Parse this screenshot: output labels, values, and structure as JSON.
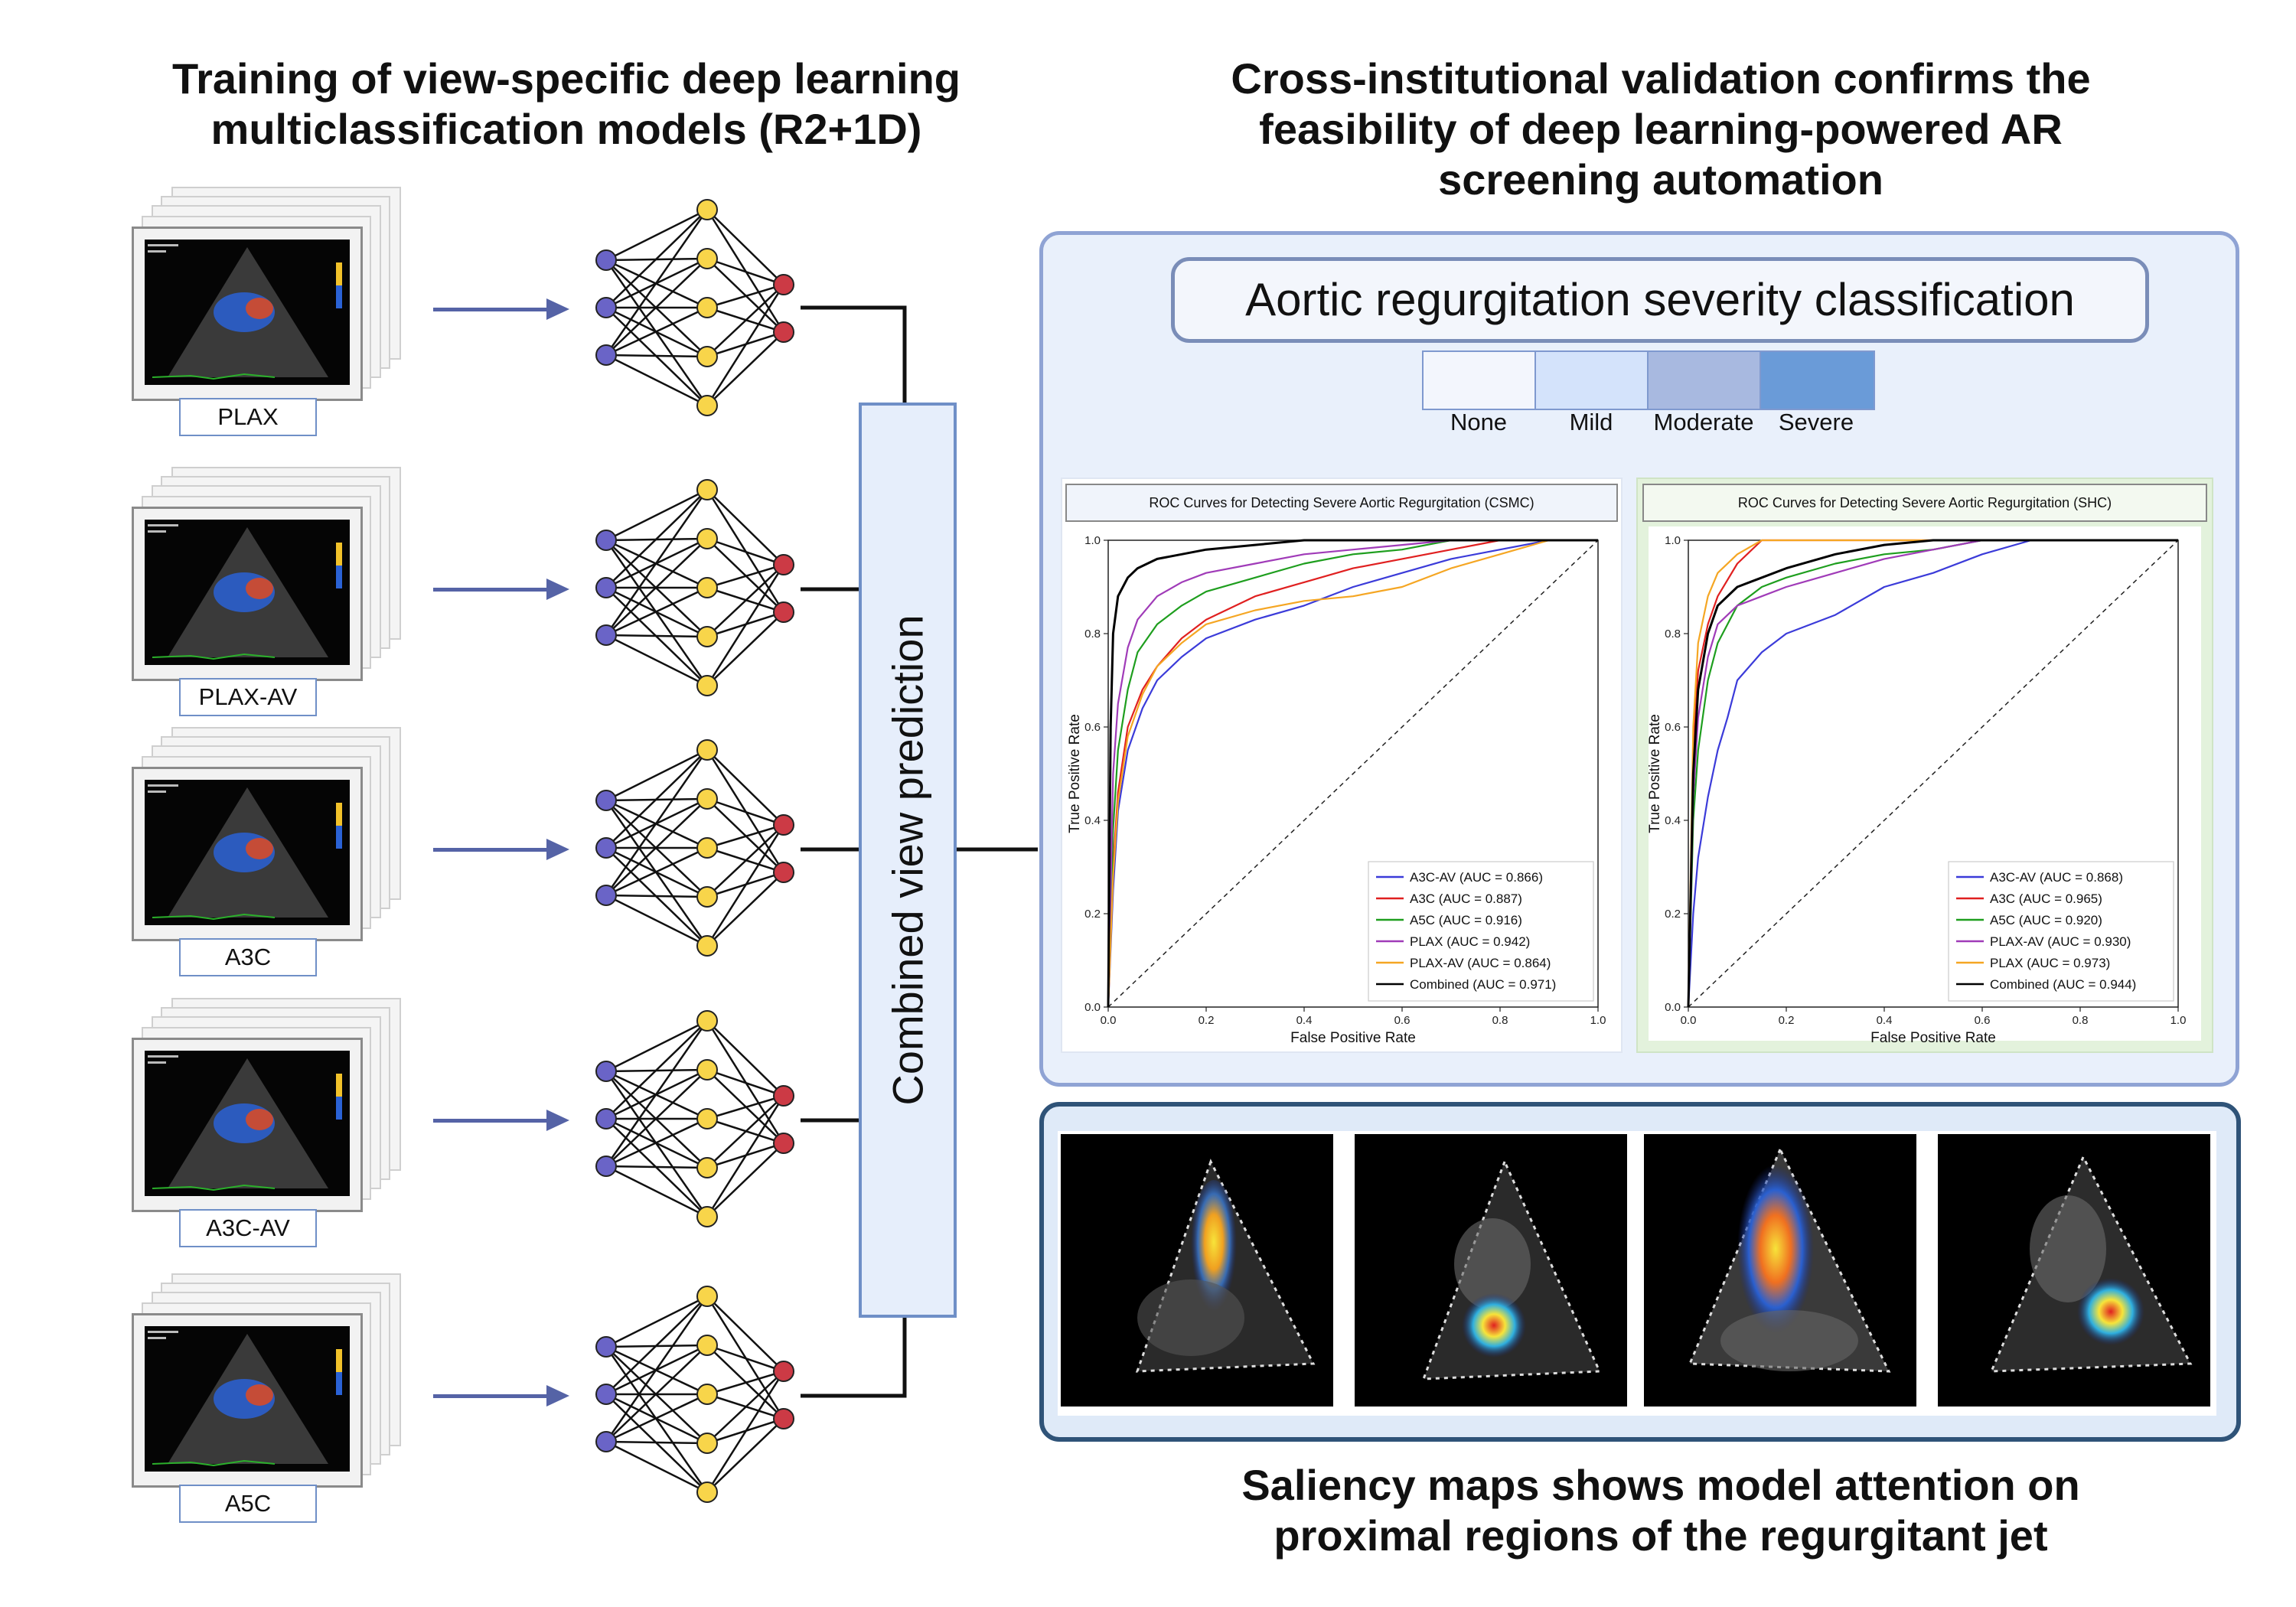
{
  "left_title_line1": "Training of view-specific deep learning",
  "left_title_line2": "multiclassification models (R2+1D)",
  "right_title_line1": "Cross-institutional validation confirms the",
  "right_title_line2": "feasibility of deep learning-powered AR",
  "right_title_line3": "screening automation",
  "bottom_title_line1": "Saliency maps shows model attention on",
  "bottom_title_line2": "proximal regions of the regurgitant jet",
  "views": [
    {
      "label": "PLAX"
    },
    {
      "label": "PLAX-AV"
    },
    {
      "label": "A3C"
    },
    {
      "label": "A3C-AV"
    },
    {
      "label": "A5C"
    }
  ],
  "combined_label": "Combined view  prediction",
  "severity_title": "Aortic regurgitation severity classification",
  "severity_legend": [
    {
      "label": "None",
      "color": "#f3f6fd"
    },
    {
      "label": "Mild",
      "color": "#d4e3fb"
    },
    {
      "label": "Moderate",
      "color": "#a8b9e0"
    },
    {
      "label": "Severe",
      "color": "#6a9bd8"
    }
  ],
  "colors": {
    "input_node": "#6a64c7",
    "hidden_node": "#f8d54a",
    "output_node": "#cc3a45",
    "arrow": "#5563a6",
    "panel_top_bg": "#e9f0fb",
    "panel_top_border": "#8fa3d4",
    "panel_bottom_bg": "#dfeaf8",
    "panel_bottom_border": "#2f5378"
  },
  "chart_data": [
    {
      "type": "line",
      "title": "ROC Curves for Detecting Severe Aortic Regurgitation (CSMC)",
      "xlabel": "False Positive Rate",
      "ylabel": "True Positive Rate",
      "xlim": [
        0,
        1
      ],
      "ylim": [
        0,
        1
      ],
      "ticks": [
        "0.0",
        "0.2",
        "0.4",
        "0.6",
        "0.8",
        "1.0"
      ],
      "legend_position": "bottom-right",
      "series": [
        {
          "name": "A3C-AV (AUC = 0.866)",
          "color": "#3b3bd9",
          "points": [
            [
              0,
              0
            ],
            [
              0.01,
              0.25
            ],
            [
              0.02,
              0.42
            ],
            [
              0.04,
              0.55
            ],
            [
              0.07,
              0.64
            ],
            [
              0.1,
              0.7
            ],
            [
              0.15,
              0.75
            ],
            [
              0.2,
              0.79
            ],
            [
              0.3,
              0.83
            ],
            [
              0.4,
              0.86
            ],
            [
              0.5,
              0.9
            ],
            [
              0.6,
              0.93
            ],
            [
              0.7,
              0.96
            ],
            [
              0.8,
              0.98
            ],
            [
              0.9,
              1
            ],
            [
              1,
              1
            ]
          ]
        },
        {
          "name": "A3C (AUC = 0.887)",
          "color": "#e02020",
          "points": [
            [
              0,
              0
            ],
            [
              0.01,
              0.3
            ],
            [
              0.02,
              0.46
            ],
            [
              0.04,
              0.6
            ],
            [
              0.07,
              0.68
            ],
            [
              0.1,
              0.73
            ],
            [
              0.15,
              0.79
            ],
            [
              0.2,
              0.83
            ],
            [
              0.3,
              0.88
            ],
            [
              0.4,
              0.91
            ],
            [
              0.5,
              0.94
            ],
            [
              0.6,
              0.96
            ],
            [
              0.7,
              0.98
            ],
            [
              0.8,
              1
            ],
            [
              1,
              1
            ]
          ]
        },
        {
          "name": "A5C (AUC = 0.916)",
          "color": "#1e9e1e",
          "points": [
            [
              0,
              0
            ],
            [
              0.01,
              0.38
            ],
            [
              0.02,
              0.55
            ],
            [
              0.04,
              0.68
            ],
            [
              0.06,
              0.76
            ],
            [
              0.1,
              0.82
            ],
            [
              0.15,
              0.86
            ],
            [
              0.2,
              0.89
            ],
            [
              0.3,
              0.92
            ],
            [
              0.4,
              0.95
            ],
            [
              0.5,
              0.97
            ],
            [
              0.6,
              0.98
            ],
            [
              0.7,
              1
            ],
            [
              1,
              1
            ]
          ]
        },
        {
          "name": "PLAX (AUC = 0.942)",
          "color": "#a03bb8",
          "points": [
            [
              0,
              0
            ],
            [
              0.01,
              0.5
            ],
            [
              0.02,
              0.65
            ],
            [
              0.04,
              0.77
            ],
            [
              0.06,
              0.83
            ],
            [
              0.1,
              0.88
            ],
            [
              0.15,
              0.91
            ],
            [
              0.2,
              0.93
            ],
            [
              0.3,
              0.95
            ],
            [
              0.4,
              0.97
            ],
            [
              0.5,
              0.98
            ],
            [
              0.6,
              0.99
            ],
            [
              0.7,
              1
            ],
            [
              1,
              1
            ]
          ]
        },
        {
          "name": "PLAX-AV (AUC = 0.864)",
          "color": "#f5a623",
          "points": [
            [
              0,
              0
            ],
            [
              0.01,
              0.28
            ],
            [
              0.02,
              0.44
            ],
            [
              0.04,
              0.58
            ],
            [
              0.07,
              0.67
            ],
            [
              0.1,
              0.73
            ],
            [
              0.15,
              0.78
            ],
            [
              0.2,
              0.82
            ],
            [
              0.3,
              0.85
            ],
            [
              0.4,
              0.87
            ],
            [
              0.5,
              0.88
            ],
            [
              0.6,
              0.9
            ],
            [
              0.7,
              0.94
            ],
            [
              0.8,
              0.97
            ],
            [
              0.9,
              1
            ],
            [
              1,
              1
            ]
          ]
        },
        {
          "name": "Combined (AUC = 0.971)",
          "color": "#000000",
          "points": [
            [
              0,
              0
            ],
            [
              0.005,
              0.6
            ],
            [
              0.01,
              0.8
            ],
            [
              0.02,
              0.88
            ],
            [
              0.04,
              0.92
            ],
            [
              0.06,
              0.94
            ],
            [
              0.1,
              0.96
            ],
            [
              0.15,
              0.97
            ],
            [
              0.2,
              0.98
            ],
            [
              0.3,
              0.99
            ],
            [
              0.4,
              1
            ],
            [
              1,
              1
            ]
          ]
        }
      ]
    },
    {
      "type": "line",
      "title": "ROC Curves for Detecting Severe Aortic Regurgitation (SHC)",
      "xlabel": "False Positive Rate",
      "ylabel": "True Positive Rate",
      "xlim": [
        0,
        1
      ],
      "ylim": [
        0,
        1
      ],
      "ticks": [
        "0.0",
        "0.2",
        "0.4",
        "0.6",
        "0.8",
        "1.0"
      ],
      "legend_position": "bottom-right",
      "series": [
        {
          "name": "A3C-AV (AUC = 0.868)",
          "color": "#3b3bd9",
          "points": [
            [
              0,
              0
            ],
            [
              0.01,
              0.2
            ],
            [
              0.02,
              0.32
            ],
            [
              0.04,
              0.45
            ],
            [
              0.06,
              0.55
            ],
            [
              0.08,
              0.62
            ],
            [
              0.1,
              0.7
            ],
            [
              0.15,
              0.76
            ],
            [
              0.2,
              0.8
            ],
            [
              0.3,
              0.84
            ],
            [
              0.4,
              0.9
            ],
            [
              0.5,
              0.93
            ],
            [
              0.6,
              0.97
            ],
            [
              0.7,
              1
            ],
            [
              1,
              1
            ]
          ]
        },
        {
          "name": "A3C (AUC = 0.965)",
          "color": "#e02020",
          "points": [
            [
              0,
              0
            ],
            [
              0.01,
              0.55
            ],
            [
              0.02,
              0.72
            ],
            [
              0.04,
              0.82
            ],
            [
              0.06,
              0.88
            ],
            [
              0.1,
              0.95
            ],
            [
              0.15,
              1
            ],
            [
              1,
              1
            ]
          ]
        },
        {
          "name": "A5C (AUC = 0.920)",
          "color": "#1e9e1e",
          "points": [
            [
              0,
              0
            ],
            [
              0.01,
              0.4
            ],
            [
              0.02,
              0.55
            ],
            [
              0.04,
              0.7
            ],
            [
              0.06,
              0.78
            ],
            [
              0.1,
              0.86
            ],
            [
              0.15,
              0.9
            ],
            [
              0.2,
              0.92
            ],
            [
              0.3,
              0.95
            ],
            [
              0.4,
              0.97
            ],
            [
              0.5,
              0.98
            ],
            [
              0.6,
              1
            ],
            [
              1,
              1
            ]
          ]
        },
        {
          "name": "PLAX-AV (AUC = 0.930)",
          "color": "#a03bb8",
          "points": [
            [
              0,
              0
            ],
            [
              0.01,
              0.45
            ],
            [
              0.02,
              0.62
            ],
            [
              0.04,
              0.75
            ],
            [
              0.06,
              0.82
            ],
            [
              0.1,
              0.86
            ],
            [
              0.15,
              0.88
            ],
            [
              0.2,
              0.9
            ],
            [
              0.3,
              0.93
            ],
            [
              0.4,
              0.96
            ],
            [
              0.5,
              0.98
            ],
            [
              0.6,
              1
            ],
            [
              1,
              1
            ]
          ]
        },
        {
          "name": "PLAX (AUC = 0.973)",
          "color": "#f5a623",
          "points": [
            [
              0,
              0
            ],
            [
              0.01,
              0.6
            ],
            [
              0.02,
              0.78
            ],
            [
              0.04,
              0.88
            ],
            [
              0.06,
              0.93
            ],
            [
              0.1,
              0.97
            ],
            [
              0.15,
              1
            ],
            [
              1,
              1
            ]
          ]
        },
        {
          "name": "Combined (AUC = 0.944)",
          "color": "#000000",
          "points": [
            [
              0,
              0
            ],
            [
              0.01,
              0.5
            ],
            [
              0.02,
              0.68
            ],
            [
              0.04,
              0.8
            ],
            [
              0.06,
              0.86
            ],
            [
              0.1,
              0.9
            ],
            [
              0.15,
              0.92
            ],
            [
              0.2,
              0.94
            ],
            [
              0.3,
              0.97
            ],
            [
              0.4,
              0.99
            ],
            [
              0.5,
              1
            ],
            [
              1,
              1
            ]
          ]
        }
      ]
    }
  ]
}
